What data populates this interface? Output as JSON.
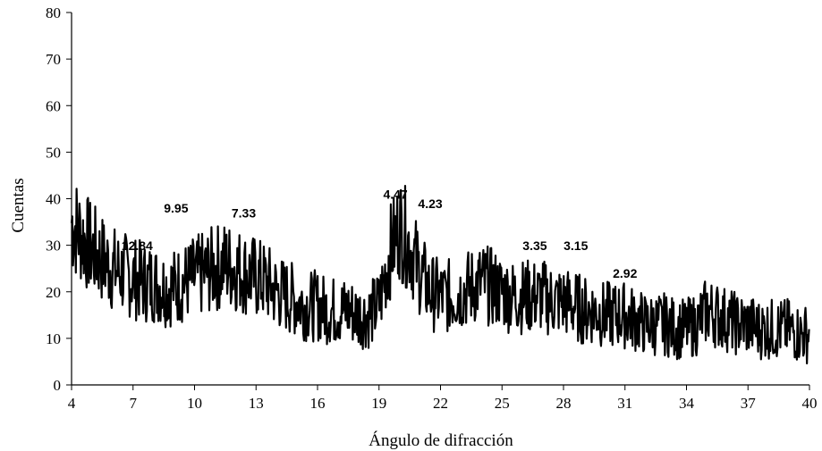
{
  "chart_data": {
    "type": "line",
    "xlabel": "Ángulo de difracción",
    "ylabel": "Cuentas",
    "xlim": [
      4,
      40
    ],
    "ylim": [
      0,
      80
    ],
    "xticks": [
      "4",
      "7",
      "10",
      "13",
      "16",
      "19",
      "22",
      "25",
      "28",
      "31",
      "34",
      "37",
      "40"
    ],
    "yticks": [
      "0",
      "10",
      "20",
      "30",
      "40",
      "50",
      "60",
      "70",
      "80"
    ],
    "grid": false,
    "legend": "none",
    "line_color": "#000000",
    "series": [
      {
        "values_note": "noisy XRD counts, approx envelope",
        "x": [
          4,
          4.5,
          5,
          5.5,
          6,
          6.5,
          7,
          7.5,
          8,
          8.5,
          9,
          9.5,
          10,
          10.5,
          11,
          11.5,
          12,
          12.5,
          13,
          13.5,
          14,
          14.5,
          15,
          15.5,
          16,
          16.5,
          17,
          17.5,
          18,
          18.5,
          19,
          19.5,
          20,
          20.5,
          21,
          21.5,
          22,
          22.5,
          23,
          23.5,
          24,
          24.5,
          25,
          25.5,
          26,
          26.5,
          27,
          27.5,
          28,
          28.5,
          29,
          29.5,
          30,
          30.5,
          31,
          31.5,
          32,
          32.5,
          33,
          33.5,
          34,
          34.5,
          35,
          35.5,
          36,
          36.5,
          37,
          37.5,
          38,
          38.5,
          39,
          39.5,
          40
        ],
        "y": [
          35,
          32,
          29,
          27,
          25,
          24,
          23,
          22,
          22,
          21,
          21,
          22,
          23,
          24,
          25,
          26,
          25,
          24,
          23,
          22,
          20,
          19,
          18,
          17,
          17,
          16,
          16,
          16,
          15,
          15,
          17,
          28,
          34,
          30,
          24,
          20,
          19,
          19,
          20,
          21,
          22,
          21,
          20,
          19,
          19,
          19,
          19,
          18,
          18,
          17,
          16,
          16,
          15,
          15,
          15,
          14,
          13,
          13,
          13,
          12,
          12,
          13,
          16,
          15,
          14,
          13,
          13,
          12,
          12,
          12,
          12,
          11,
          11
        ]
      }
    ],
    "annotations": [
      {
        "text": "12.84",
        "x": 7.2,
        "y": 29
      },
      {
        "text": "9.95",
        "x": 9.1,
        "y": 37
      },
      {
        "text": "7.33",
        "x": 12.4,
        "y": 36
      },
      {
        "text": "4.47",
        "x": 19.8,
        "y": 40
      },
      {
        "text": "4.23",
        "x": 21.5,
        "y": 38
      },
      {
        "text": "3.35",
        "x": 26.6,
        "y": 29
      },
      {
        "text": "3.15",
        "x": 28.6,
        "y": 29
      },
      {
        "text": "2.92",
        "x": 31.0,
        "y": 23
      }
    ]
  }
}
